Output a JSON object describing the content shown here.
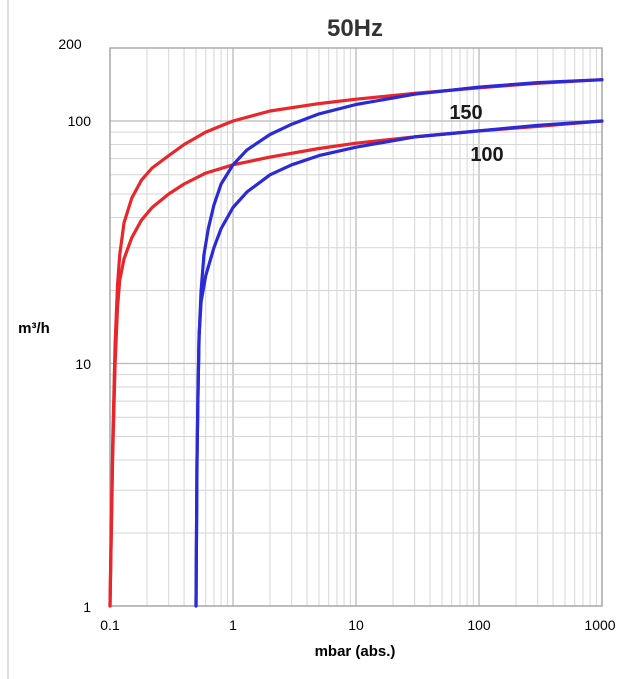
{
  "chart_data": {
    "type": "line",
    "title": "50Hz",
    "xlabel": "mbar (abs.)",
    "ylabel": "m³/h",
    "x_scale": "log",
    "y_scale": "log",
    "xlim": [
      0.1,
      1000
    ],
    "ylim": [
      1,
      200
    ],
    "x_ticks": [
      "0.1",
      "1",
      "10",
      "100",
      "1000"
    ],
    "y_ticks": [
      "1",
      "10",
      "100",
      "200"
    ],
    "grid": true,
    "colors": {
      "red": "#e8262b",
      "blue": "#2a2ad6",
      "grid": "#d6d6d6",
      "axis": "#a8a8a8"
    },
    "series_labels": {
      "upper": "150",
      "lower": "100"
    },
    "series": [
      {
        "color": "#e8262b",
        "x": [
          0.1,
          0.105,
          0.11,
          0.115,
          0.12,
          0.13,
          0.15,
          0.18,
          0.22,
          0.3,
          0.4,
          0.6,
          1,
          2,
          5,
          10,
          30,
          100,
          300,
          1000
        ],
        "y": [
          1,
          4.5,
          12,
          21,
          28,
          38,
          48,
          57,
          64,
          72,
          80,
          90,
          100,
          110,
          118,
          123,
          130,
          137,
          143,
          148
        ]
      },
      {
        "color": "#e8262b",
        "x": [
          0.1,
          0.105,
          0.11,
          0.115,
          0.12,
          0.13,
          0.15,
          0.18,
          0.22,
          0.3,
          0.4,
          0.6,
          1,
          2,
          5,
          10,
          30,
          100,
          300,
          1000
        ],
        "y": [
          1,
          4,
          10,
          17,
          22,
          27,
          33,
          39,
          44,
          50,
          55,
          61,
          66,
          71,
          77,
          81,
          86,
          91,
          95,
          100
        ]
      },
      {
        "color": "#2a2ad6",
        "x": [
          0.5,
          0.505,
          0.51,
          0.52,
          0.53,
          0.55,
          0.58,
          0.63,
          0.7,
          0.8,
          1,
          1.3,
          2,
          3,
          5,
          10,
          30,
          100,
          300,
          1000
        ],
        "y": [
          1,
          2,
          4,
          8,
          13,
          20,
          28,
          36,
          45,
          55,
          66,
          76,
          88,
          97,
          107,
          117,
          129,
          138,
          144,
          148
        ]
      },
      {
        "color": "#2a2ad6",
        "x": [
          0.5,
          0.505,
          0.51,
          0.52,
          0.53,
          0.55,
          0.6,
          0.7,
          0.8,
          1,
          1.3,
          2,
          3,
          5,
          10,
          30,
          100,
          300,
          1000
        ],
        "y": [
          1,
          2,
          4,
          8,
          13,
          18,
          23,
          30,
          36,
          44,
          51,
          60,
          66,
          72,
          78,
          86,
          91,
          96,
          100
        ]
      }
    ]
  }
}
